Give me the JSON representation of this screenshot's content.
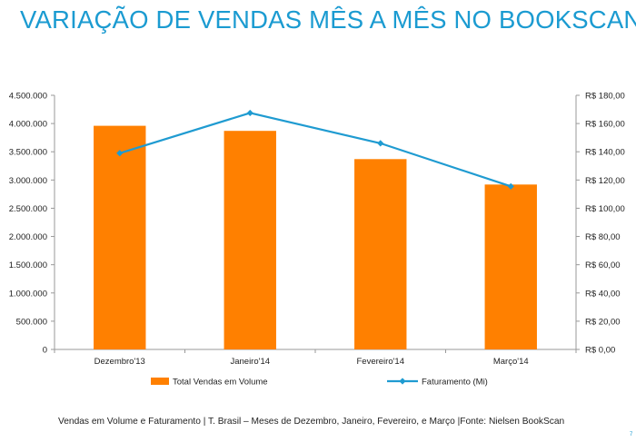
{
  "slide": {
    "title": "VARIAÇÃO DE VENDAS MÊS A MÊS NO BOOKSCAN",
    "caption": "Vendas em Volume e Faturamento | T. Brasil – Meses de Dezembro, Janeiro, Fevereiro, e Março |Fonte: Nielsen BookScan",
    "page_number": "7"
  },
  "colors": {
    "title": "#1b9bd1",
    "bars": "#ff8000",
    "line": "#1f9bd1",
    "axis": "#999999"
  },
  "chart_data": {
    "type": "bar",
    "title": "",
    "categories": [
      "Dezembro'13",
      "Janeiro'14",
      "Fevereiro'14",
      "Março'14"
    ],
    "series": [
      {
        "name": "Total Vendas em Volume",
        "type": "bar",
        "axis": "left",
        "values": [
          3960000,
          3870000,
          3370000,
          2920000
        ]
      },
      {
        "name": "Faturamento (Mi)",
        "type": "line",
        "axis": "right",
        "marker": "diamond",
        "values": [
          139,
          167.5,
          146,
          115.5
        ]
      }
    ],
    "y_left": {
      "ylim": [
        0,
        4500000
      ],
      "ticks": [
        0,
        500000,
        1000000,
        1500000,
        2000000,
        2500000,
        3000000,
        3500000,
        4000000,
        4500000
      ],
      "tick_labels": [
        "0",
        "500.000",
        "1.000.000",
        "1.500.000",
        "2.000.000",
        "2.500.000",
        "3.000.000",
        "3.500.000",
        "4.000.000",
        "4.500.000"
      ]
    },
    "y_right": {
      "ylim": [
        0,
        180
      ],
      "ticks": [
        0,
        20,
        40,
        60,
        80,
        100,
        120,
        140,
        160,
        180
      ],
      "tick_labels": [
        "R$ 0,00",
        "R$ 20,00",
        "R$ 40,00",
        "R$ 60,00",
        "R$ 80,00",
        "R$ 100,00",
        "R$ 120,00",
        "R$ 140,00",
        "R$ 160,00",
        "R$ 180,00"
      ]
    },
    "legend": {
      "position": "bottom",
      "entries": [
        "Total Vendas em Volume",
        "Faturamento (Mi)"
      ]
    },
    "grid": false
  }
}
